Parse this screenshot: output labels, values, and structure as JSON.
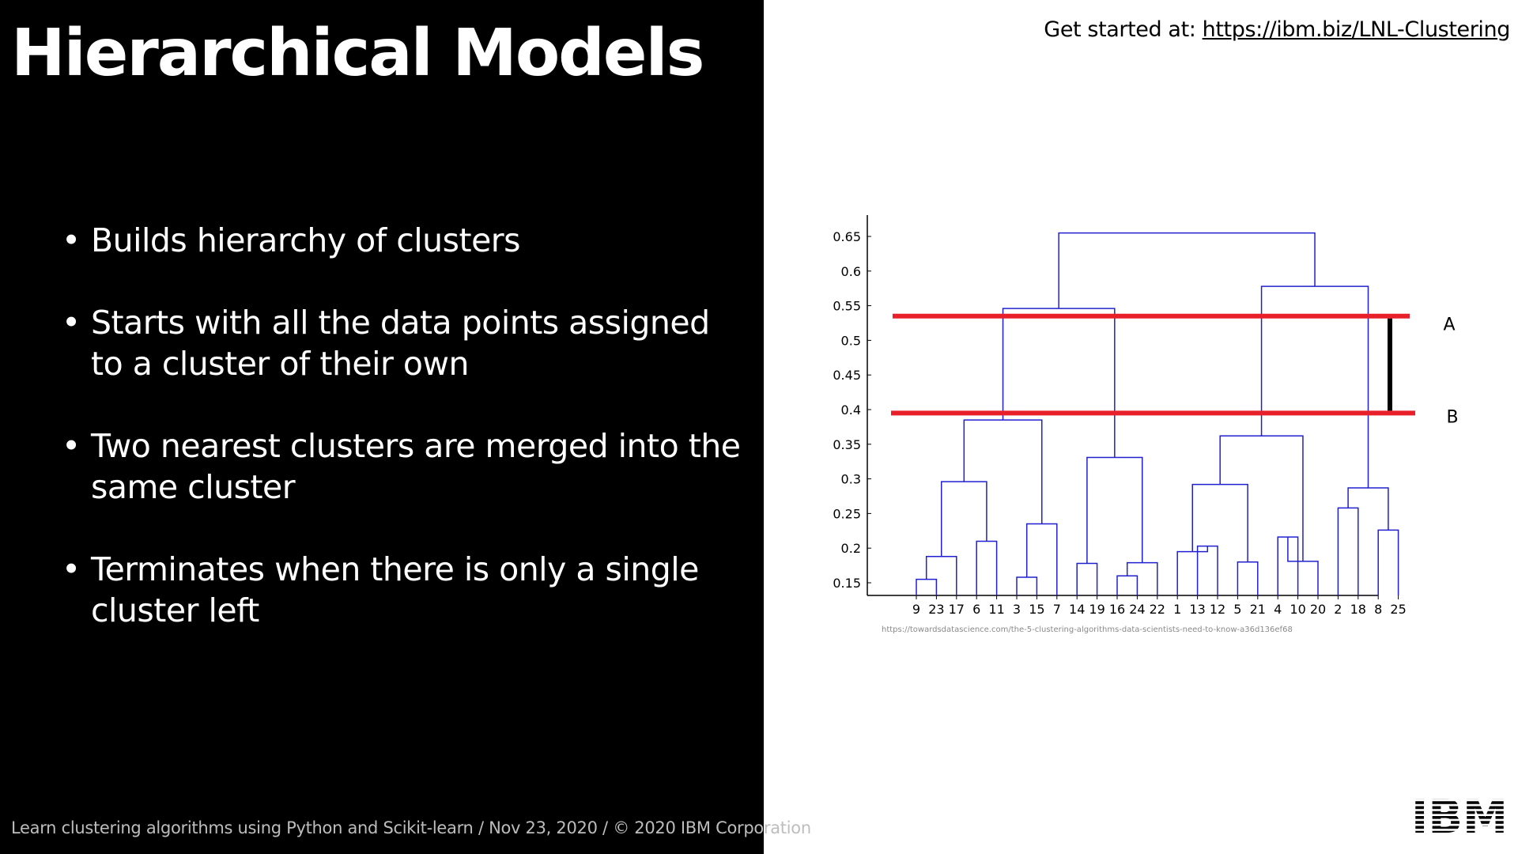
{
  "slide": {
    "title": "Hierarchical Models",
    "bullets": [
      "Builds hierarchy of clusters",
      "Starts with all the data points assigned to a cluster of their own",
      "Two nearest clusters are merged into the same cluster",
      " Terminates when there is only a single cluster left"
    ],
    "bullet_marker": "•",
    "footer": "Learn clustering algorithms using Python and Scikit-learn / Nov 23, 2020 / © 2020 IBM Corporation",
    "get_started_label": "Get started at: ",
    "get_started_link": "https://ibm.biz/LNL-Clustering",
    "logo_text": "IBM",
    "colors": {
      "left_panel": "#000000",
      "text_light": "#ffffff",
      "footer_text": "#bdbdbd",
      "dendrogram": "#2020d0",
      "cut_line": "#e8202a",
      "marker": "#000000"
    }
  },
  "chart_data": {
    "type": "dendrogram",
    "title": "",
    "xlabel": "",
    "ylabel": "",
    "source_caption": "https://towardsdatascience.com/the-5-clustering-algorithms-data-scientists-need-to-know-a36d136ef68",
    "yticks": [
      "0.15",
      "0.2",
      "0.25",
      "0.3",
      "0.35",
      "0.4",
      "0.45",
      "0.5",
      "0.55",
      "0.6",
      "0.65"
    ],
    "ylim": [
      0.13,
      0.67
    ],
    "leaf_order": [
      "9",
      "23",
      "17",
      "6",
      "11",
      "3",
      "15",
      "7",
      "14",
      "19",
      "16",
      "24",
      "22",
      "1",
      "13",
      "12",
      "5",
      "21",
      "4",
      "10",
      "20",
      "2",
      "18",
      "8",
      "25"
    ],
    "merges": [
      {
        "a": "9",
        "b": "23",
        "id": "m1",
        "height": 0.155
      },
      {
        "a": "m1",
        "b": "17",
        "id": "m2",
        "height": 0.188
      },
      {
        "a": "6",
        "b": "11",
        "id": "m3",
        "height": 0.21
      },
      {
        "a": "m2",
        "b": "m3",
        "id": "m4",
        "height": 0.296
      },
      {
        "a": "3",
        "b": "15",
        "id": "m5",
        "height": 0.158
      },
      {
        "a": "7",
        "b": "m5",
        "id": "m6",
        "height": 0.235
      },
      {
        "a": "m4",
        "b": "m6",
        "id": "m7",
        "height": 0.385
      },
      {
        "a": "16",
        "b": "24",
        "id": "m8",
        "height": 0.16
      },
      {
        "a": "m8",
        "b": "22",
        "id": "m9",
        "height": 0.179
      },
      {
        "a": "14",
        "b": "19",
        "id": "m10",
        "height": 0.178
      },
      {
        "a": "m10",
        "b": "m9",
        "id": "m11",
        "height": 0.331
      },
      {
        "a": "m7",
        "b": "m11",
        "id": "m12",
        "height": 0.546
      },
      {
        "a": "13",
        "b": "12",
        "id": "m13",
        "height": 0.203
      },
      {
        "a": "1",
        "b": "m13",
        "id": "m14",
        "height": 0.195
      },
      {
        "a": "5",
        "b": "21",
        "id": "m15",
        "height": 0.18
      },
      {
        "a": "m14",
        "b": "m15",
        "id": "m16",
        "height": 0.292
      },
      {
        "a": "4",
        "b": "10",
        "id": "m17",
        "height": 0.216
      },
      {
        "a": "m17",
        "b": "20",
        "id": "m18",
        "height": 0.181
      },
      {
        "a": "m16",
        "b": "m18",
        "id": "m19",
        "height": 0.362
      },
      {
        "a": "2",
        "b": "18",
        "id": "m20",
        "height": 0.258
      },
      {
        "a": "8",
        "b": "25",
        "id": "m21",
        "height": 0.226
      },
      {
        "a": "m20",
        "b": "m21",
        "id": "m22",
        "height": 0.287
      },
      {
        "a": "m19",
        "b": "m22",
        "id": "m23",
        "height": 0.578
      },
      {
        "a": "m12",
        "b": "m23",
        "id": "m24",
        "height": 0.655
      }
    ],
    "cut_lines": [
      {
        "label": "A",
        "y": 0.535
      },
      {
        "label": "B",
        "y": 0.395
      }
    ]
  }
}
